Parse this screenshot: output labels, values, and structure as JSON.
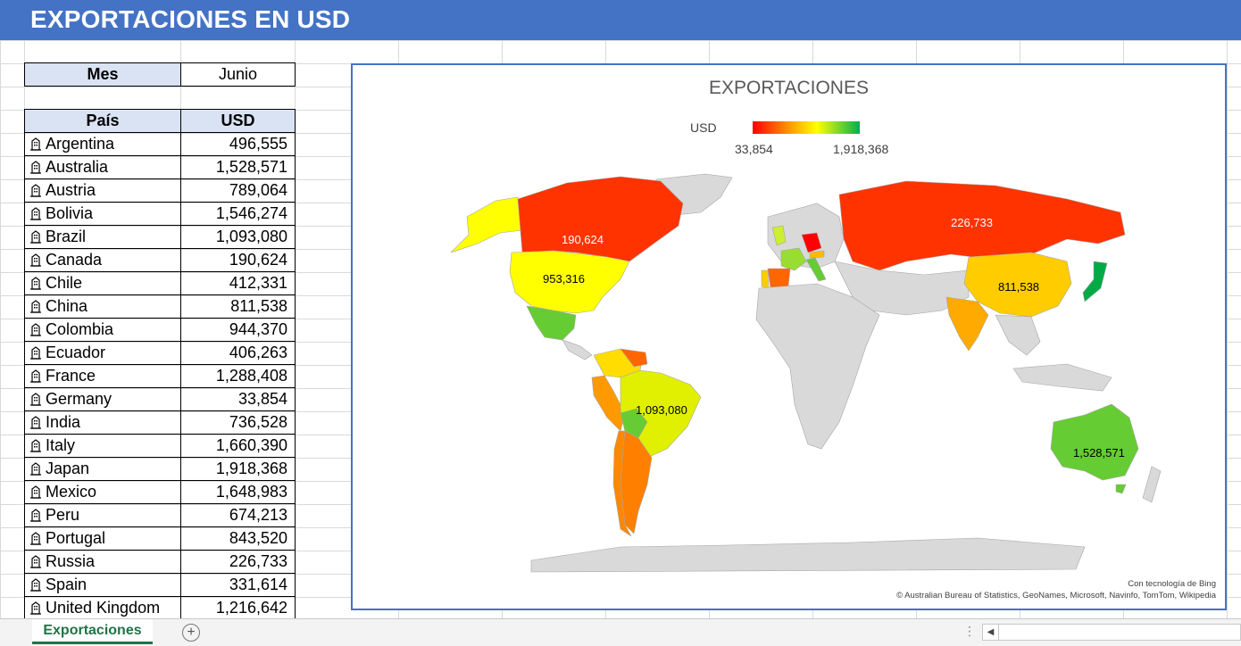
{
  "header": {
    "title": "EXPORTACIONES EN USD"
  },
  "month": {
    "label": "Mes",
    "value": "Junio"
  },
  "table": {
    "col_country": "País",
    "col_usd": "USD",
    "rows": [
      {
        "country": "Argentina",
        "usd": "496,555"
      },
      {
        "country": "Australia",
        "usd": "1,528,571"
      },
      {
        "country": "Austria",
        "usd": "789,064"
      },
      {
        "country": "Bolivia",
        "usd": "1,546,274"
      },
      {
        "country": "Brazil",
        "usd": "1,093,080"
      },
      {
        "country": "Canada",
        "usd": "190,624"
      },
      {
        "country": "Chile",
        "usd": "412,331"
      },
      {
        "country": "China",
        "usd": "811,538"
      },
      {
        "country": "Colombia",
        "usd": "944,370"
      },
      {
        "country": "Ecuador",
        "usd": "406,263"
      },
      {
        "country": "France",
        "usd": "1,288,408"
      },
      {
        "country": "Germany",
        "usd": "33,854"
      },
      {
        "country": "India",
        "usd": "736,528"
      },
      {
        "country": "Italy",
        "usd": "1,660,390"
      },
      {
        "country": "Japan",
        "usd": "1,918,368"
      },
      {
        "country": "Mexico",
        "usd": "1,648,983"
      },
      {
        "country": "Peru",
        "usd": "674,213"
      },
      {
        "country": "Portugal",
        "usd": "843,520"
      },
      {
        "country": "Russia",
        "usd": "226,733"
      },
      {
        "country": "Spain",
        "usd": "331,614"
      },
      {
        "country": "United Kingdom",
        "usd": "1,216,642"
      }
    ]
  },
  "chart": {
    "title": "EXPORTACIONES",
    "legend_title": "USD",
    "legend_min": "33,854",
    "legend_max": "1,918,368",
    "map_labels": {
      "canada": "190,624",
      "russia": "226,733",
      "usa": "953,316",
      "china": "811,538",
      "brazil": "1,093,080",
      "australia": "1,528,571"
    },
    "attribution_1": "Con tecnología de Bing",
    "attribution_2": "© Australian Bureau of Statistics, GeoNames, Microsoft, Navinfo, TomTom, Wikipedia"
  },
  "colors": {
    "header_bg": "#4472c4",
    "table_header_bg": "#dae3f3",
    "chart_border": "#4472c4",
    "tab_accent": "#217346",
    "land_gray": "#d9d9d9"
  },
  "sheet_tabs": {
    "active": "Exportaciones"
  },
  "icons": {
    "geo": "building-geo-icon",
    "add_sheet": "plus-circle-icon"
  }
}
